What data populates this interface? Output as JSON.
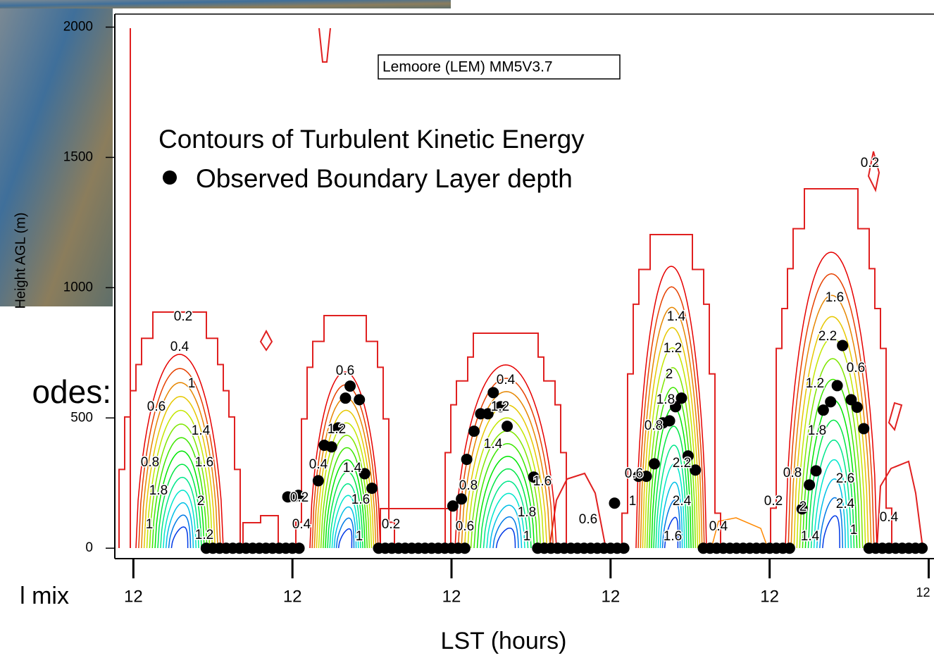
{
  "background_text": [
    "odes:",
    "l mix"
  ],
  "chart_data": {
    "type": "scatter",
    "title": "Lemoore (LEM) MM5V3.7",
    "annotation": "Contours of Turbulent Kinetic Energy",
    "x_label": "LST (hours)",
    "y_label": "Height AGL (m)",
    "xlim": [
      9.2,
      132.8
    ],
    "ylim": [
      -40,
      2050
    ],
    "xticks": [
      12,
      {
        "value": 36,
        "label": "12"
      },
      {
        "value": 60,
        "label": "12"
      },
      {
        "value": 84,
        "label": "12"
      },
      {
        "value": 108,
        "label": "12"
      },
      {
        "value": 132,
        "label": "12"
      }
    ],
    "yticks": [
      0,
      500,
      1000,
      1500,
      2000
    ],
    "contour_labels": [
      0.2,
      0.4,
      1,
      0.6,
      1.4,
      0.8,
      1.6,
      1.8,
      2,
      1,
      1.2,
      0.6,
      1.2,
      0.4,
      1.4,
      0.2,
      1.6,
      0.4,
      1,
      0.4,
      1.2,
      1.4,
      0.8,
      1.8,
      1.6,
      0.6,
      1,
      0.2,
      0.6,
      1.4,
      1.2,
      2,
      1.8,
      0.8,
      2.2,
      0.6,
      1,
      2.4,
      1.6,
      0.4,
      0.2,
      1.6,
      2.2,
      1.2,
      0.6,
      1.8,
      0.8,
      2.6,
      0.2,
      2,
      2.4,
      1.4,
      1,
      0.4
    ],
    "series": [
      {
        "name": "Observed Boundary Layer depth",
        "color": "#000000",
        "x": [
          23,
          24,
          25,
          26,
          27,
          28,
          29,
          30,
          31,
          32,
          33,
          34,
          35,
          36,
          37,
          35.3,
          36.2,
          36.9,
          39.9,
          40.8,
          41.9,
          42.9,
          44.0,
          44.7,
          46.1,
          46.9,
          48.0,
          49,
          50,
          51,
          52,
          53,
          54,
          55,
          56,
          57,
          58,
          59,
          60,
          61,
          62,
          60.2,
          61.5,
          62.3,
          63.4,
          64.4,
          65.5,
          66.3,
          67.4,
          68.4,
          72.4,
          73,
          74,
          75,
          76,
          77,
          78,
          79,
          80,
          81,
          82,
          83,
          84,
          85,
          86,
          84.6,
          88.2,
          89.4,
          90.6,
          91.9,
          92.9,
          93.8,
          94.7,
          95.7,
          96.8,
          98,
          99,
          100,
          101,
          102,
          103,
          104,
          105,
          106,
          107,
          108,
          109,
          110,
          111,
          112.9,
          114.0,
          115.0,
          116.1,
          117.2,
          118.2,
          119.0,
          120.3,
          121.2,
          122.2,
          123,
          124,
          125,
          126,
          127,
          128,
          129,
          130,
          131
        ],
        "values": [
          0,
          0,
          0,
          0,
          0,
          0,
          0,
          0,
          0,
          0,
          0,
          0,
          0,
          0,
          0,
          197,
          197,
          203,
          259,
          395,
          389,
          462,
          576,
          622,
          570,
          286,
          230,
          0,
          0,
          0,
          0,
          0,
          0,
          0,
          0,
          0,
          0,
          0,
          0,
          0,
          0,
          162,
          189,
          341,
          449,
          516,
          516,
          597,
          543,
          468,
          273,
          0,
          0,
          0,
          0,
          0,
          0,
          0,
          0,
          0,
          0,
          0,
          0,
          0,
          0,
          173,
          276,
          276,
          324,
          481,
          489,
          543,
          576,
          354,
          300,
          0,
          0,
          0,
          0,
          0,
          0,
          0,
          0,
          0,
          0,
          0,
          0,
          0,
          0,
          151,
          243,
          297,
          530,
          562,
          624,
          778,
          570,
          541,
          459,
          0,
          0,
          0,
          0,
          0,
          0,
          0,
          0,
          0
        ]
      }
    ]
  }
}
